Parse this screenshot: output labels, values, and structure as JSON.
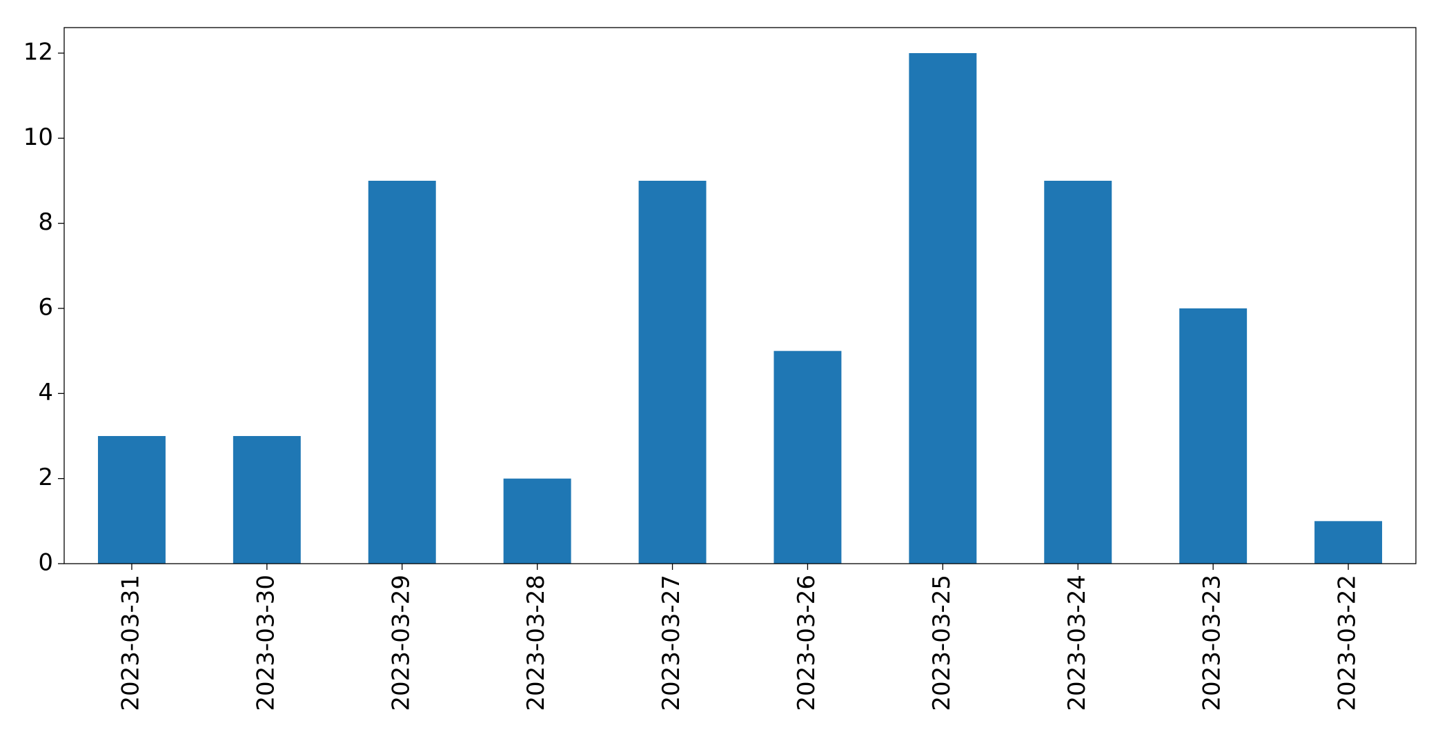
{
  "chart_data": {
    "type": "bar",
    "categories": [
      "2023-03-31",
      "2023-03-30",
      "2023-03-29",
      "2023-03-28",
      "2023-03-27",
      "2023-03-26",
      "2023-03-25",
      "2023-03-24",
      "2023-03-23",
      "2023-03-22"
    ],
    "values": [
      3,
      3,
      9,
      2,
      9,
      5,
      12,
      9,
      6,
      1
    ],
    "color": "#1f77b4",
    "ylim": [
      0,
      12.6
    ],
    "yticks": [
      0,
      2,
      4,
      6,
      8,
      10,
      12
    ],
    "grid": false
  }
}
